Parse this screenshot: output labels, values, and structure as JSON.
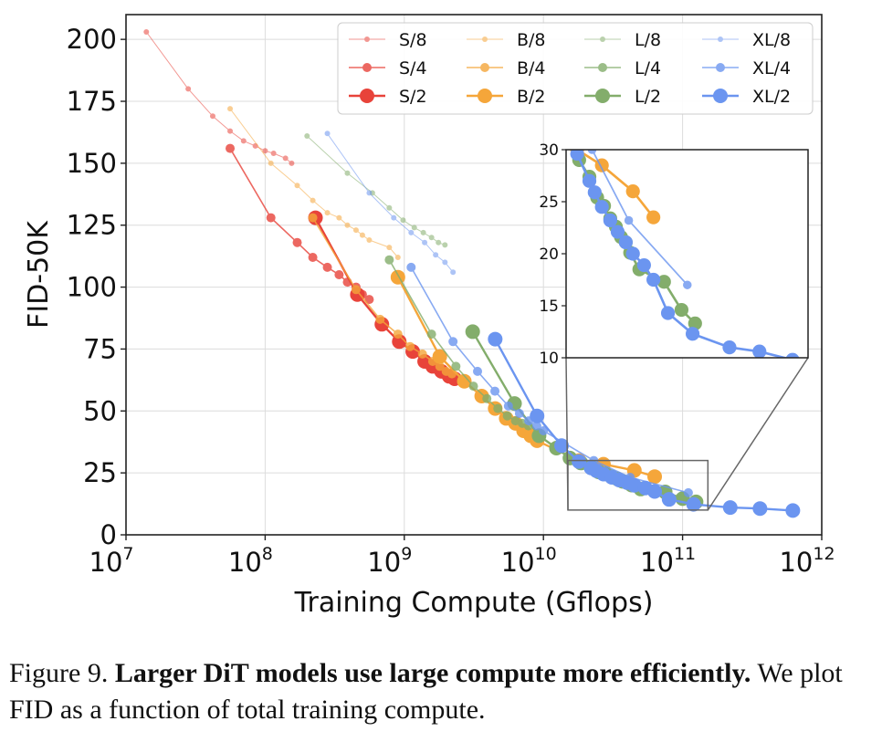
{
  "caption": {
    "label": "Figure 9.",
    "bold_text": "Larger DiT models use large compute more efficiently.",
    "text": "We plot FID as a function of total training compute."
  },
  "chart_data": {
    "type": "line",
    "xlabel": "Training Compute (Gflops)",
    "ylabel": "FID-50K",
    "x_scale": "log",
    "xlim": [
      10000000.0,
      1000000000000.0
    ],
    "ylim": [
      0,
      210
    ],
    "x_ticks": [
      {
        "base": "10",
        "exp": "7",
        "value": 10000000.0
      },
      {
        "base": "10",
        "exp": "8",
        "value": 100000000.0
      },
      {
        "base": "10",
        "exp": "9",
        "value": 1000000000.0
      },
      {
        "base": "10",
        "exp": "10",
        "value": 10000000000.0
      },
      {
        "base": "10",
        "exp": "11",
        "value": 100000000000.0
      },
      {
        "base": "10",
        "exp": "12",
        "value": 1000000000000.0
      }
    ],
    "y_ticks": [
      "0",
      "25",
      "50",
      "75",
      "100",
      "125",
      "150",
      "175",
      "200"
    ],
    "grid": true,
    "legend_position": "top-right",
    "colors": {
      "S": "#e8433a",
      "B": "#f5a63a",
      "L": "#83ad6b",
      "XL": "#6b95f0"
    },
    "series": [
      {
        "name": "S/8",
        "family": "S",
        "patch": 8,
        "x": [
          14000000.0,
          28000000.0,
          42000000.0,
          56000000.0,
          70000000.0,
          85000000.0,
          100000000.0,
          115000000.0,
          140000000.0,
          155000000.0
        ],
        "y": [
          203,
          180,
          169,
          163,
          159,
          157,
          155,
          154,
          152,
          150
        ]
      },
      {
        "name": "S/4",
        "family": "S",
        "patch": 4,
        "x": [
          56000000.0,
          110000000.0,
          170000000.0,
          220000000.0,
          280000000.0,
          340000000.0,
          390000000.0,
          450000000.0,
          500000000.0,
          560000000.0
        ],
        "y": [
          156,
          128,
          118,
          112,
          108,
          105,
          102,
          100,
          97,
          95
        ]
      },
      {
        "name": "S/2",
        "family": "S",
        "patch": 2,
        "x": [
          230000000.0,
          460000000.0,
          690000000.0,
          920000000.0,
          1150000000.0,
          1400000000.0,
          1600000000.0,
          1850000000.0,
          2100000000.0,
          2300000000.0
        ],
        "y": [
          128,
          97,
          85,
          78,
          74,
          70,
          68,
          66,
          64,
          63
        ]
      },
      {
        "name": "B/8",
        "family": "B",
        "patch": 8,
        "x": [
          56000000.0,
          110000000.0,
          170000000.0,
          220000000.0,
          280000000.0,
          340000000.0,
          390000000.0,
          450000000.0,
          500000000.0,
          560000000.0,
          780000000.0,
          900000000.0
        ],
        "y": [
          172,
          150,
          141,
          135,
          130,
          128,
          125,
          123,
          121,
          119,
          116,
          112
        ]
      },
      {
        "name": "B/4",
        "family": "B",
        "patch": 4,
        "x": [
          220000000.0,
          450000000.0,
          670000000.0,
          900000000.0,
          1100000000.0,
          1350000000.0,
          1600000000.0,
          1800000000.0,
          2000000000.0,
          2200000000.0
        ],
        "y": [
          128,
          99,
          87,
          81,
          76,
          73,
          70,
          68,
          66,
          65
        ]
      },
      {
        "name": "B/2",
        "family": "B",
        "patch": 2,
        "x": [
          900000000.0,
          1800000000.0,
          2700000000.0,
          3600000000.0,
          4500000000.0,
          5400000000.0,
          6300000000.0,
          7200000000.0,
          8100000000.0,
          9000000000.0,
          18000000000.0,
          27000000000.0,
          45000000000.0,
          63000000000.0
        ],
        "y": [
          104,
          72,
          62,
          56,
          51,
          47,
          45,
          42,
          40,
          38,
          30,
          28.5,
          26,
          23.5
        ]
      },
      {
        "name": "L/8",
        "family": "L",
        "patch": 8,
        "x": [
          200000000.0,
          390000000.0,
          590000000.0,
          780000000.0,
          980000000.0,
          1180000000.0,
          1370000000.0,
          1570000000.0,
          1760000000.0,
          1960000000.0
        ],
        "y": [
          161,
          146,
          138,
          132,
          127,
          124,
          122,
          120,
          118,
          117
        ]
      },
      {
        "name": "L/4",
        "family": "L",
        "patch": 4,
        "x": [
          780000000.0,
          1570000000.0,
          2350000000.0,
          3140000000.0,
          3920000000.0,
          4700000000.0,
          5500000000.0,
          6300000000.0,
          7050000000.0,
          7800000000.0
        ],
        "y": [
          111,
          81,
          68,
          60,
          55,
          51,
          48,
          46,
          45,
          44
        ]
      },
      {
        "name": "L/2",
        "family": "L",
        "patch": 2,
        "x": [
          3100000000.0,
          6200000000.0,
          9300000000.0,
          12400000000.0,
          15500000000.0,
          18600000000.0,
          22000000000.0,
          25000000000.0,
          28000000000.0,
          31000000000.0,
          34000000000.0,
          37000000000.0,
          40000000000.0,
          43000000000.0,
          50000000000.0,
          75000000000.0,
          100000000000.0,
          125000000000.0
        ],
        "y": [
          82,
          53,
          40,
          35,
          31,
          29,
          27.4,
          25.4,
          24.6,
          23.4,
          22.6,
          21.6,
          21.1,
          20.1,
          18.5,
          17.3,
          14.6,
          13.3
        ]
      },
      {
        "name": "XL/8",
        "family": "XL",
        "patch": 8,
        "x": [
          280000000.0,
          560000000.0,
          840000000.0,
          1120000000.0,
          1400000000.0,
          1680000000.0,
          1960000000.0,
          2240000000.0
        ],
        "y": [
          162,
          138,
          128,
          122,
          118,
          113,
          110,
          106
        ]
      },
      {
        "name": "XL/4",
        "family": "XL",
        "patch": 4,
        "x": [
          1120000000.0,
          2240000000.0,
          3360000000.0,
          4480000000.0,
          5600000000.0,
          6720000000.0,
          7840000000.0,
          8960000000.0,
          10000000000.0,
          23000000000.0,
          42000000000.0,
          110000000000.0
        ],
        "y": [
          108,
          78,
          66,
          58,
          52,
          49,
          46,
          44,
          42,
          30,
          23.2,
          17
        ]
      },
      {
        "name": "XL/2",
        "family": "XL",
        "patch": 2,
        "x": [
          4500000000.0,
          9000000000.0,
          13500000000.0,
          18000000000.0,
          22000000000.0,
          24000000000.0,
          27000000000.0,
          31000000000.0,
          35000000000.0,
          40000000000.0,
          45000000000.0,
          54000000000.0,
          63000000000.0,
          80000000000.0,
          120000000000.0,
          220000000000.0,
          360000000000.0,
          620000000000.0
        ],
        "y": [
          79,
          48,
          36,
          29.6,
          27,
          25.9,
          24.5,
          23.2,
          22.1,
          21.1,
          20,
          18.9,
          17.5,
          14.3,
          12.3,
          11,
          10.6,
          9.8
        ]
      }
    ],
    "inset": {
      "xlim": [
        15000000000.0,
        800000000000.0
      ],
      "ylim": [
        10,
        30
      ],
      "y_ticks": [
        "10",
        "15",
        "20",
        "25",
        "30"
      ],
      "grid": false
    }
  }
}
